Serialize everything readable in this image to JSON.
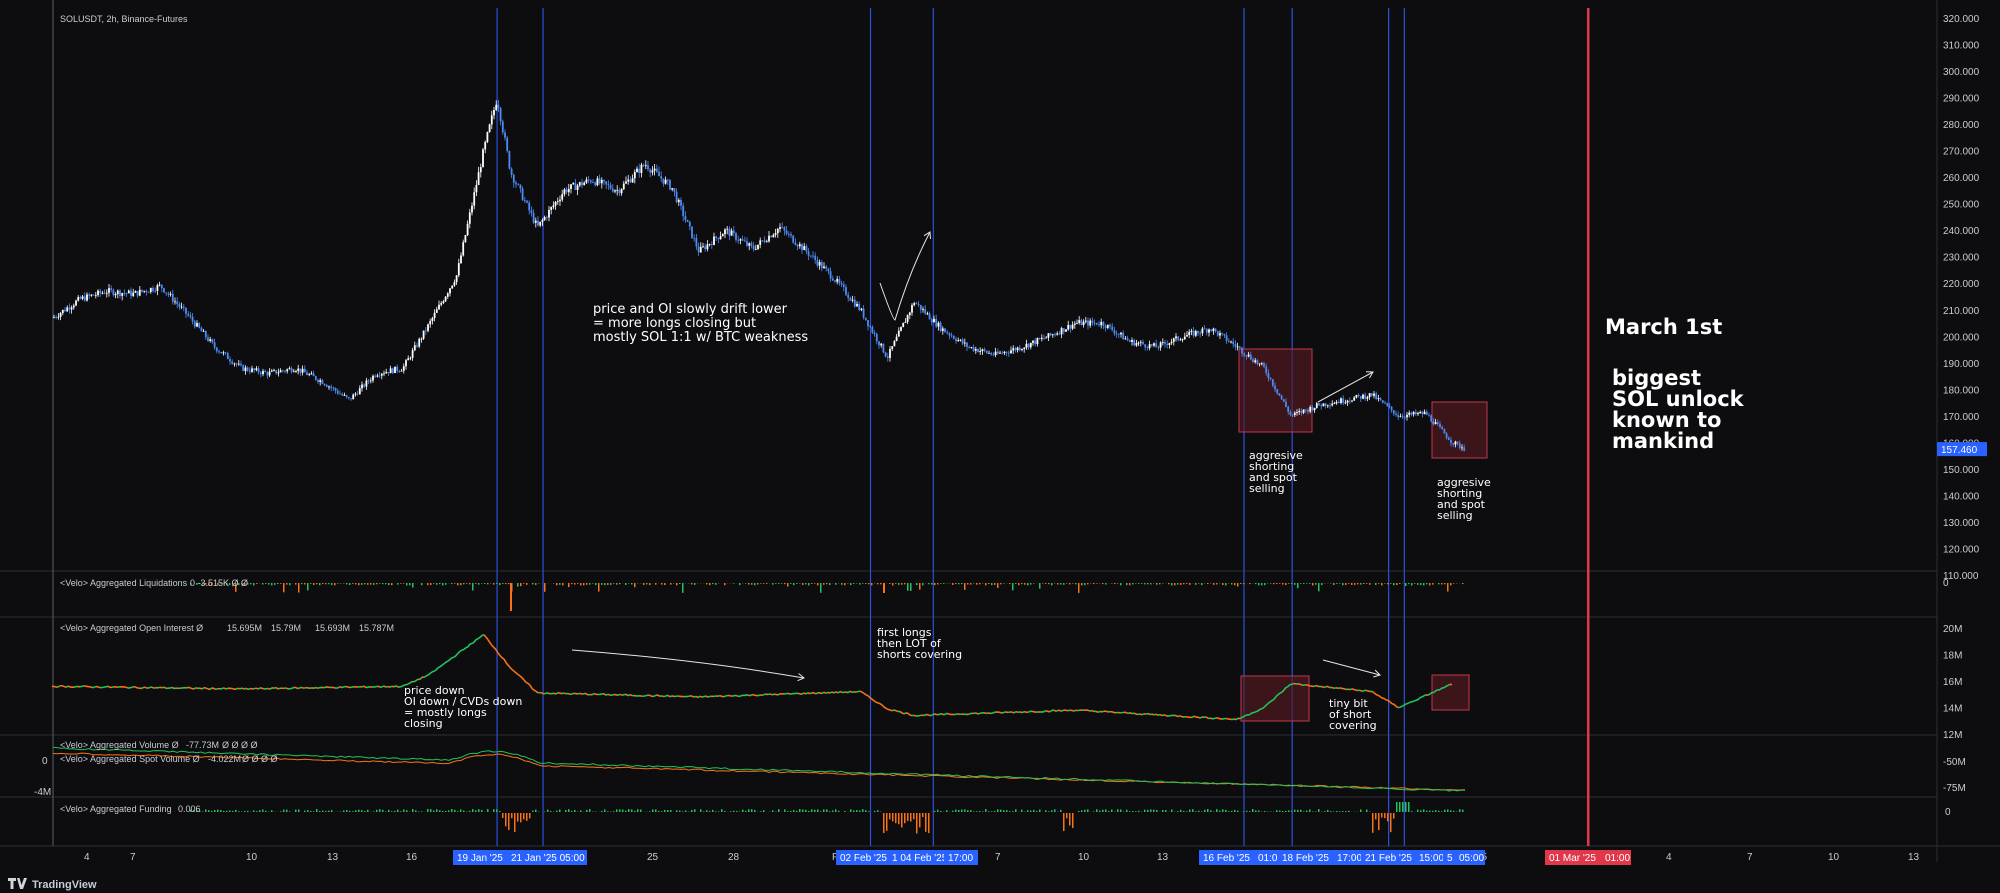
{
  "header": {
    "symbol_title": "SOLUSDT, 2h, Binance-Futures"
  },
  "footer": {
    "brand": "TradingView"
  },
  "colors": {
    "background": "#0d0d0f",
    "up_candle": "#ffffff",
    "down_candle": "#4c8bf5",
    "vline": "#2f4fd8",
    "event_line": "#e0384a",
    "oi_up": "#22c55e",
    "oi_down": "#f97316",
    "price_badge": "#2962ff",
    "box_fill": "#5a1a22",
    "box_stroke": "#c0394b"
  },
  "price_axis": {
    "ticks": [
      "320.000",
      "310.000",
      "300.000",
      "290.000",
      "280.000",
      "270.000",
      "260.000",
      "250.000",
      "240.000",
      "230.000",
      "220.000",
      "210.000",
      "200.000",
      "190.000",
      "180.000",
      "170.000",
      "160.000",
      "150.000",
      "140.000",
      "130.000",
      "120.000",
      "110.000"
    ],
    "last_price": "157.460"
  },
  "liq_axis": {
    "ticks": [
      "0"
    ]
  },
  "oi_axis": {
    "ticks": [
      "20M",
      "18M",
      "16M",
      "14M",
      "12M"
    ]
  },
  "vol_axis": {
    "ticks": [
      "-50M",
      "-75M"
    ],
    "left_ticks": [
      "0",
      "-4M"
    ]
  },
  "fund_axis": {
    "ticks": [
      "0"
    ]
  },
  "x_axis": {
    "ticks": [
      "4",
      "7",
      "10",
      "13",
      "16",
      "25",
      "28",
      "F",
      "7",
      "10",
      "13",
      "25",
      "4",
      "7",
      "10",
      "13"
    ],
    "badges": [
      "19 Jan '25",
      "21 Jan '25   05:00",
      "02 Feb '25",
      "1  04 Feb '25",
      "17:00",
      "16 Feb '25",
      "01:0",
      "18 Feb '25",
      "17:00",
      "21 Feb '25",
      "15:00",
      "5",
      "05:00",
      "01 Mar '25",
      "01:00"
    ]
  },
  "indicators": {
    "liquidations": {
      "label": "<Velo> Aggregated Liquidations",
      "value": "0  -3.515K  Ø  Ø"
    },
    "open_interest": {
      "label": "<Velo> Aggregated Open Interest  Ø",
      "values": [
        "15.695M",
        "15.79M",
        "15.693M",
        "15.787M"
      ]
    },
    "volume": {
      "label": "<Velo> Aggregated Volume  Ø",
      "value": "-77.73M",
      "tail": "Ø  Ø  Ø  Ø"
    },
    "spot_volume": {
      "label": "<Velo> Aggregated Spot Volume  Ø",
      "value": "-4.022M",
      "tail": "Ø  Ø  Ø  Ø"
    },
    "funding": {
      "label": "<Velo> Aggregated Funding",
      "value": "0.006"
    }
  },
  "annotations": {
    "drift": [
      "price and OI slowly drift lower",
      "= more longs closing but",
      "mostly SOL 1:1 w/ BTC weakness"
    ],
    "aggressive_1": [
      "aggresive",
      "shorting",
      "and spot",
      "selling"
    ],
    "aggressive_2": [
      "aggresive",
      "shorting",
      "and spot",
      "selling"
    ],
    "first_longs": [
      "first longs",
      "then LOT of",
      "shorts covering"
    ],
    "price_down": [
      "price down",
      "OI down / CVDs down",
      "= mostly longs",
      "closing"
    ],
    "tiny_bit": [
      "tiny bit",
      "of short",
      "covering"
    ],
    "march": "March 1st",
    "unlock": [
      "biggest",
      "SOL unlock",
      "known to",
      "mankind"
    ]
  },
  "chart_data": {
    "type": "candlestick",
    "title": "SOLUSDT, 2h, Binance-Futures",
    "ylim": [
      110,
      320
    ],
    "x_range": [
      "2025-01-03",
      "2025-03-14"
    ],
    "price_path": [
      [
        "2025-01-03",
        207
      ],
      [
        "2025-01-04",
        214
      ],
      [
        "2025-01-05",
        217
      ],
      [
        "2025-01-06",
        216
      ],
      [
        "2025-01-07",
        219
      ],
      [
        "2025-01-08",
        208
      ],
      [
        "2025-01-09",
        196
      ],
      [
        "2025-01-10",
        188
      ],
      [
        "2025-01-11",
        186
      ],
      [
        "2025-01-12",
        188
      ],
      [
        "2025-01-13",
        183
      ],
      [
        "2025-01-14",
        176
      ],
      [
        "2025-01-15",
        186
      ],
      [
        "2025-01-16",
        188
      ],
      [
        "2025-01-17",
        205
      ],
      [
        "2025-01-18",
        223
      ],
      [
        "2025-01-19",
        270
      ],
      [
        "2025-01-19T12:00",
        290
      ],
      [
        "2025-01-20",
        262
      ],
      [
        "2025-01-21",
        241
      ],
      [
        "2025-01-22",
        255
      ],
      [
        "2025-01-23",
        259
      ],
      [
        "2025-01-24",
        255
      ],
      [
        "2025-01-25",
        265
      ],
      [
        "2025-01-26",
        256
      ],
      [
        "2025-01-27",
        232
      ],
      [
        "2025-01-28",
        240
      ],
      [
        "2025-01-29",
        233
      ],
      [
        "2025-01-30",
        241
      ],
      [
        "2025-01-31",
        232
      ],
      [
        "2025-02-01",
        222
      ],
      [
        "2025-02-02",
        210
      ],
      [
        "2025-02-03",
        192
      ],
      [
        "2025-02-04",
        213
      ],
      [
        "2025-02-05",
        203
      ],
      [
        "2025-02-06",
        196
      ],
      [
        "2025-02-07",
        193
      ],
      [
        "2025-02-08",
        196
      ],
      [
        "2025-02-09",
        200
      ],
      [
        "2025-02-10",
        205
      ],
      [
        "2025-02-11",
        205
      ],
      [
        "2025-02-12",
        198
      ],
      [
        "2025-02-13",
        196
      ],
      [
        "2025-02-14",
        200
      ],
      [
        "2025-02-15",
        203
      ],
      [
        "2025-02-16",
        196
      ],
      [
        "2025-02-17",
        188
      ],
      [
        "2025-02-18",
        170
      ],
      [
        "2025-02-19",
        174
      ],
      [
        "2025-02-20",
        176
      ],
      [
        "2025-02-21",
        178
      ],
      [
        "2025-02-22",
        170
      ],
      [
        "2025-02-23",
        171
      ],
      [
        "2025-02-24",
        160
      ],
      [
        "2025-02-24T12:00",
        157.46
      ]
    ],
    "open_interest_M_path": [
      [
        "2025-01-03",
        15.6
      ],
      [
        "2025-01-10",
        15.4
      ],
      [
        "2025-01-16",
        15.6
      ],
      [
        "2025-01-17",
        16.5
      ],
      [
        "2025-01-19",
        19.5
      ],
      [
        "2025-01-20",
        17.0
      ],
      [
        "2025-01-21",
        15.1
      ],
      [
        "2025-01-27",
        14.8
      ],
      [
        "2025-02-02",
        15.2
      ],
      [
        "2025-02-03",
        13.9
      ],
      [
        "2025-02-04",
        13.4
      ],
      [
        "2025-02-10",
        13.8
      ],
      [
        "2025-02-16",
        13.1
      ],
      [
        "2025-02-17",
        14.0
      ],
      [
        "2025-02-18",
        15.8
      ],
      [
        "2025-02-21",
        15.2
      ],
      [
        "2025-02-22",
        14.0
      ],
      [
        "2025-02-24",
        15.79
      ]
    ],
    "oi_ylim": [
      12,
      20
    ],
    "events": {
      "march_1st": "2025-03-01"
    }
  }
}
